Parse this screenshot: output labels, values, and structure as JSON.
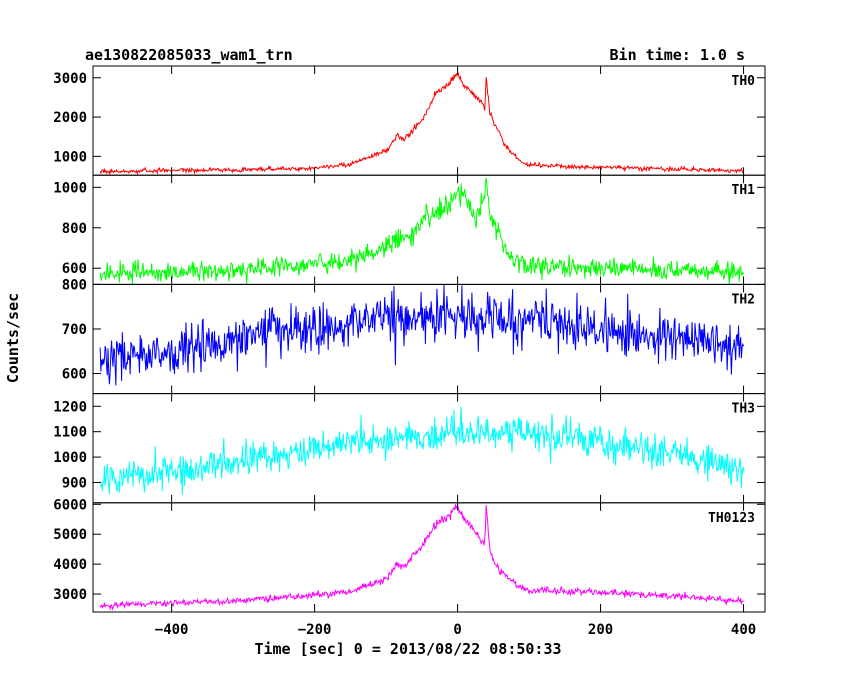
{
  "header": {
    "title": "ae130822085033_wam1_trn",
    "bin_time": "Bin time: 1.0 s"
  },
  "chart_data": {
    "type": "line",
    "title": "ae130822085033_wam1_trn",
    "xlabel": "Time [sec] 0 = 2013/08/22 08:50:33",
    "ylabel": "Counts/sec",
    "xlim": [
      -510,
      430
    ],
    "x_ticks": [
      -400,
      -200,
      0,
      200,
      400
    ],
    "x_tick_labels": [
      "−400",
      "−200",
      "0",
      "200",
      "400"
    ],
    "grid": false,
    "legend": "none",
    "series": [
      {
        "name": "TH0",
        "color": "#ff0000",
        "ylim": [
          520,
          3300
        ],
        "y_ticks": [
          1000,
          2000,
          3000
        ],
        "y_tick_labels": [
          "1000",
          "2000",
          "3000"
        ],
        "x": [
          -500,
          -400,
          -300,
          -200,
          -150,
          -100,
          -85,
          -75,
          -50,
          -30,
          -10,
          0,
          10,
          20,
          30,
          38,
          40,
          45,
          55,
          70,
          90,
          100,
          200,
          300,
          400
        ],
        "values": [
          620,
          640,
          660,
          700,
          800,
          1150,
          1500,
          1400,
          1900,
          2600,
          2900,
          3100,
          2800,
          2600,
          2450,
          2200,
          3000,
          2100,
          1700,
          1200,
          850,
          780,
          720,
          680,
          630
        ]
      },
      {
        "name": "TH1",
        "color": "#00ff00",
        "ylim": [
          520,
          1060
        ],
        "y_ticks": [
          600,
          800,
          1000
        ],
        "y_tick_labels": [
          "600",
          "800",
          "1000"
        ],
        "x": [
          -500,
          -400,
          -300,
          -200,
          -150,
          -100,
          -60,
          -30,
          -10,
          0,
          10,
          20,
          30,
          40,
          45,
          55,
          70,
          90,
          100,
          200,
          300,
          400
        ],
        "values": [
          570,
          580,
          600,
          620,
          640,
          700,
          790,
          880,
          930,
          980,
          940,
          880,
          840,
          1040,
          860,
          780,
          680,
          620,
          610,
          600,
          590,
          580
        ]
      },
      {
        "name": "TH2",
        "color": "#0000ff",
        "ylim": [
          555,
          800
        ],
        "y_ticks": [
          600,
          700,
          800
        ],
        "y_tick_labels": [
          "600",
          "700",
          "800"
        ],
        "x": [
          -500,
          -400,
          -300,
          -200,
          -100,
          0,
          100,
          200,
          300,
          400
        ],
        "values": [
          635,
          650,
          680,
          705,
          720,
          730,
          720,
          700,
          680,
          660
        ]
      },
      {
        "name": "TH3",
        "color": "#00ffff",
        "ylim": [
          820,
          1250
        ],
        "y_ticks": [
          900,
          1000,
          1100,
          1200
        ],
        "y_tick_labels": [
          "900",
          "1000",
          "1100",
          "1200"
        ],
        "x": [
          -500,
          -400,
          -300,
          -200,
          -100,
          0,
          100,
          200,
          300,
          400
        ],
        "values": [
          900,
          940,
          990,
          1030,
          1070,
          1100,
          1090,
          1060,
          1010,
          950
        ]
      },
      {
        "name": "TH0123",
        "color": "#ff00ff",
        "ylim": [
          2400,
          6050
        ],
        "y_ticks": [
          3000,
          4000,
          5000,
          6000
        ],
        "y_tick_labels": [
          "3000",
          "4000",
          "5000",
          "6000"
        ],
        "x": [
          -500,
          -400,
          -300,
          -200,
          -150,
          -100,
          -85,
          -75,
          -50,
          -30,
          -10,
          0,
          10,
          20,
          30,
          38,
          40,
          45,
          55,
          70,
          90,
          100,
          200,
          300,
          400
        ],
        "values": [
          2620,
          2700,
          2800,
          2950,
          3100,
          3500,
          4000,
          3900,
          4600,
          5300,
          5700,
          5900,
          5500,
          5200,
          4900,
          4700,
          6000,
          4500,
          3900,
          3500,
          3200,
          3150,
          3050,
          2950,
          2750
        ]
      }
    ]
  }
}
